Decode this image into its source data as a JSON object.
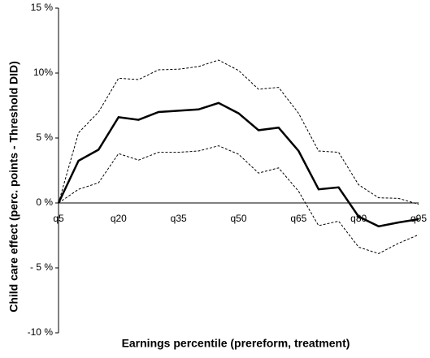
{
  "chart_data": {
    "type": "line",
    "x_label": "Earnings percentile (prereform, treatment)",
    "y_label": "Child care effect (perc. points - Threshold DID)",
    "categories": [
      "q5",
      null,
      null,
      "q20",
      null,
      null,
      "q35",
      null,
      null,
      "q50",
      null,
      null,
      "q65",
      null,
      null,
      "q80",
      null,
      null,
      "q95"
    ],
    "ylim": [
      -10,
      15
    ],
    "yticks": [
      {
        "value": -10,
        "label": "-10 %"
      },
      {
        "value": -5,
        "label": "- 5 %"
      },
      {
        "value": 0,
        "label": "0 %"
      },
      {
        "value": 5,
        "label": "5 %"
      },
      {
        "value": 10,
        "label": "10%"
      },
      {
        "value": 15,
        "label": "15 %"
      }
    ],
    "series": [
      {
        "color": "#000000",
        "dashed": false,
        "values": [
          0,
          3.25,
          4.1,
          6.6,
          6.4,
          7.0,
          7.1,
          7.2,
          7.7,
          6.9,
          5.6,
          5.8,
          4.0,
          1.05,
          1.2,
          -1.05,
          -1.8,
          -1.5,
          -1.25
        ]
      },
      {
        "color": "#000000",
        "dashed": true,
        "values": [
          0,
          5.4,
          7.0,
          9.6,
          9.5,
          10.25,
          10.3,
          10.5,
          11.0,
          10.2,
          8.75,
          8.9,
          6.9,
          4.0,
          3.9,
          1.4,
          0.4,
          0.35,
          -0.1
        ]
      },
      {
        "color": "#000000",
        "dashed": true,
        "values": [
          0,
          1.05,
          1.55,
          3.8,
          3.3,
          3.9,
          3.9,
          4.0,
          4.4,
          3.75,
          2.3,
          2.7,
          0.9,
          -1.75,
          -1.4,
          -3.4,
          -3.9,
          -3.1,
          -2.45
        ]
      }
    ]
  }
}
